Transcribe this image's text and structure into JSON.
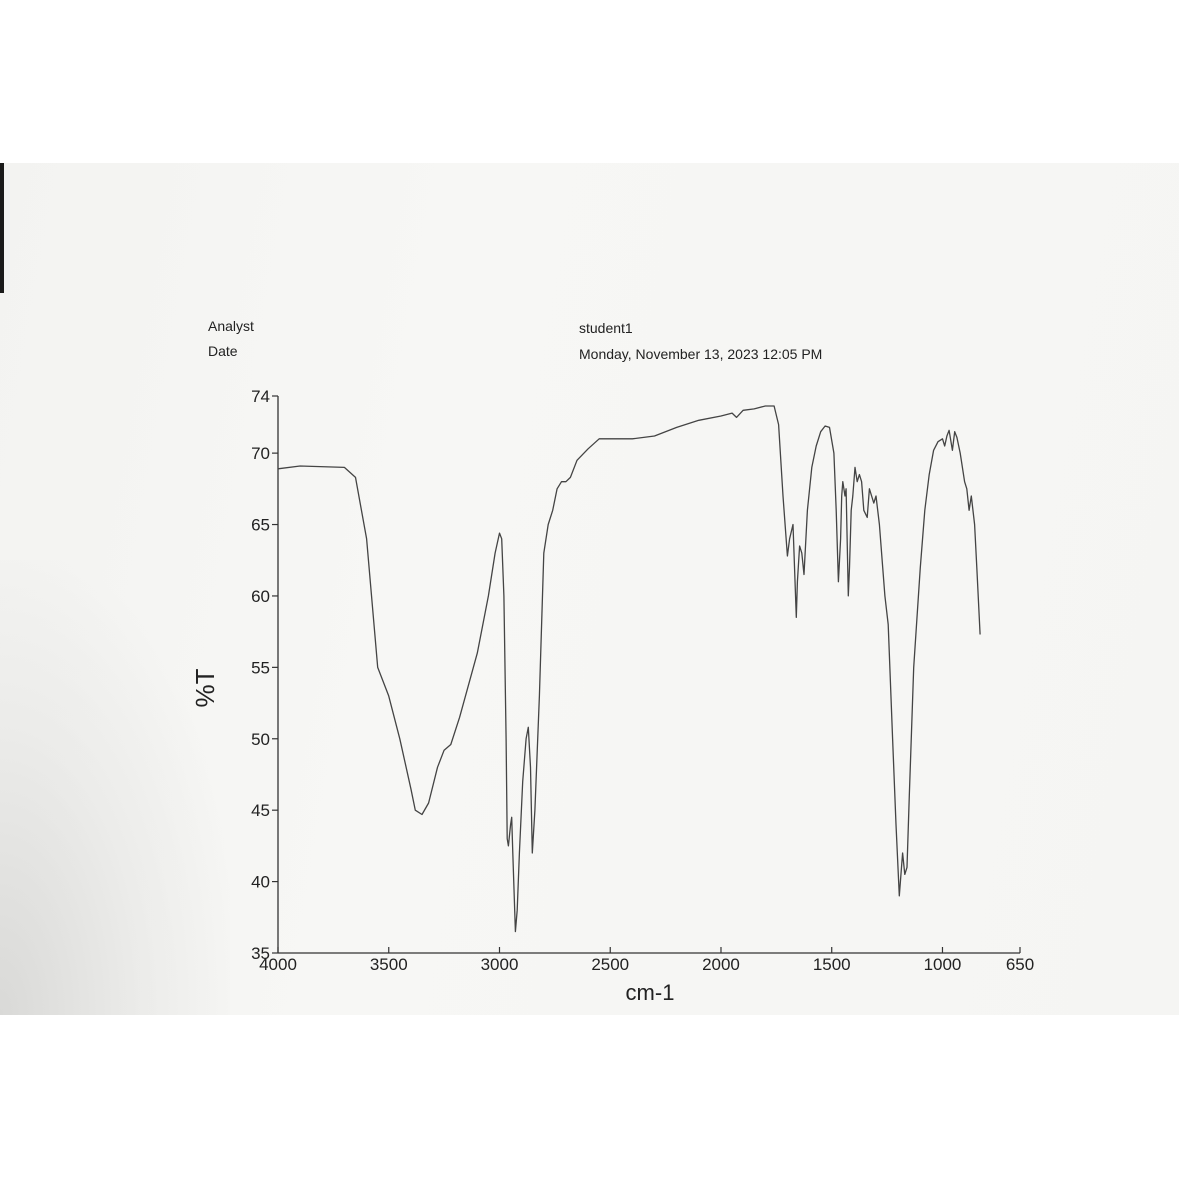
{
  "header": {
    "analyst_label": "Analyst",
    "date_label": "Date",
    "analyst_value": "student1",
    "date_value": "Monday, November 13, 2023 12:05 PM"
  },
  "chart_data": {
    "type": "line",
    "title": "",
    "xlabel": "cm-1",
    "ylabel": "%T",
    "xlim": [
      4000,
      650
    ],
    "ylim": [
      35,
      74
    ],
    "x_ticks": [
      4000,
      3500,
      3000,
      2500,
      2000,
      1500,
      1000,
      650
    ],
    "y_ticks": [
      35,
      40,
      45,
      50,
      55,
      60,
      65,
      70,
      74
    ],
    "grid": false,
    "series": [
      {
        "color": "#444444",
        "points": [
          [
            4000,
            68.9
          ],
          [
            3900,
            69.1
          ],
          [
            3700,
            69.0
          ],
          [
            3650,
            68.3
          ],
          [
            3600,
            64
          ],
          [
            3550,
            55
          ],
          [
            3500,
            53
          ],
          [
            3450,
            50
          ],
          [
            3400,
            46.5
          ],
          [
            3380,
            45
          ],
          [
            3350,
            44.7
          ],
          [
            3320,
            45.5
          ],
          [
            3280,
            48
          ],
          [
            3250,
            49.2
          ],
          [
            3220,
            49.6
          ],
          [
            3180,
            51.5
          ],
          [
            3100,
            56
          ],
          [
            3050,
            60
          ],
          [
            3020,
            63
          ],
          [
            3000,
            64.4
          ],
          [
            2990,
            64
          ],
          [
            2980,
            60
          ],
          [
            2970,
            50
          ],
          [
            2965,
            43
          ],
          [
            2960,
            42.5
          ],
          [
            2950,
            44
          ],
          [
            2945,
            44.5
          ],
          [
            2940,
            42
          ],
          [
            2928,
            36.5
          ],
          [
            2920,
            38
          ],
          [
            2910,
            42
          ],
          [
            2895,
            47
          ],
          [
            2880,
            50
          ],
          [
            2870,
            50.8
          ],
          [
            2860,
            48
          ],
          [
            2852,
            42
          ],
          [
            2840,
            45
          ],
          [
            2820,
            53
          ],
          [
            2800,
            63
          ],
          [
            2780,
            65
          ],
          [
            2760,
            66
          ],
          [
            2740,
            67.5
          ],
          [
            2720,
            68
          ],
          [
            2700,
            68
          ],
          [
            2680,
            68.3
          ],
          [
            2650,
            69.5
          ],
          [
            2600,
            70.3
          ],
          [
            2550,
            71
          ],
          [
            2500,
            71
          ],
          [
            2400,
            71
          ],
          [
            2300,
            71.2
          ],
          [
            2200,
            71.8
          ],
          [
            2100,
            72.3
          ],
          [
            2000,
            72.6
          ],
          [
            1950,
            72.8
          ],
          [
            1930,
            72.5
          ],
          [
            1900,
            73
          ],
          [
            1850,
            73.1
          ],
          [
            1800,
            73.3
          ],
          [
            1760,
            73.3
          ],
          [
            1740,
            72
          ],
          [
            1720,
            67
          ],
          [
            1700,
            62.8
          ],
          [
            1690,
            64
          ],
          [
            1675,
            65
          ],
          [
            1660,
            58.5
          ],
          [
            1655,
            61
          ],
          [
            1645,
            63.5
          ],
          [
            1635,
            63
          ],
          [
            1625,
            61.5
          ],
          [
            1610,
            66
          ],
          [
            1590,
            69
          ],
          [
            1570,
            70.5
          ],
          [
            1550,
            71.5
          ],
          [
            1530,
            71.9
          ],
          [
            1510,
            71.8
          ],
          [
            1490,
            70
          ],
          [
            1480,
            66
          ],
          [
            1470,
            61
          ],
          [
            1460,
            64
          ],
          [
            1455,
            67
          ],
          [
            1450,
            68
          ],
          [
            1440,
            67
          ],
          [
            1435,
            67.5
          ],
          [
            1425,
            60
          ],
          [
            1420,
            62
          ],
          [
            1412,
            66
          ],
          [
            1405,
            67
          ],
          [
            1395,
            69
          ],
          [
            1385,
            68
          ],
          [
            1375,
            68.5
          ],
          [
            1365,
            68
          ],
          [
            1355,
            66
          ],
          [
            1340,
            65.5
          ],
          [
            1330,
            67.5
          ],
          [
            1310,
            66.5
          ],
          [
            1300,
            67
          ],
          [
            1285,
            65
          ],
          [
            1270,
            62
          ],
          [
            1260,
            60
          ],
          [
            1245,
            58
          ],
          [
            1225,
            50
          ],
          [
            1210,
            44
          ],
          [
            1195,
            39
          ],
          [
            1185,
            41
          ],
          [
            1180,
            42
          ],
          [
            1170,
            40.5
          ],
          [
            1160,
            41
          ],
          [
            1150,
            46
          ],
          [
            1130,
            55
          ],
          [
            1100,
            62
          ],
          [
            1080,
            66
          ],
          [
            1060,
            68.5
          ],
          [
            1040,
            70.2
          ],
          [
            1020,
            70.8
          ],
          [
            1000,
            71
          ],
          [
            990,
            70.5
          ],
          [
            980,
            71.2
          ],
          [
            970,
            71.6
          ],
          [
            955,
            70.2
          ],
          [
            945,
            71.5
          ],
          [
            935,
            71.1
          ],
          [
            920,
            70
          ],
          [
            900,
            68
          ],
          [
            890,
            67.5
          ],
          [
            880,
            66
          ],
          [
            870,
            67
          ],
          [
            855,
            65
          ],
          [
            845,
            62
          ],
          [
            830,
            57.3
          ]
        ]
      }
    ]
  }
}
